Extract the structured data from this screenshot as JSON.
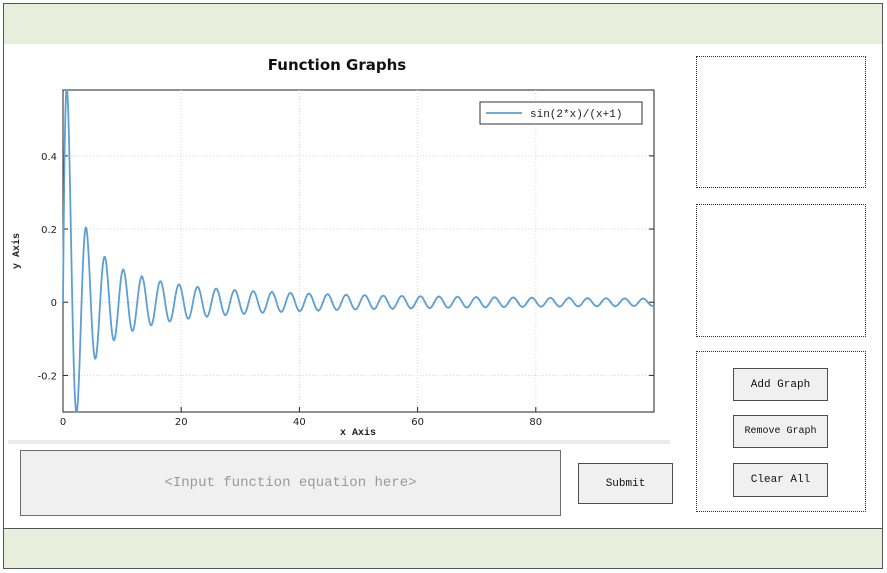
{
  "chart_data": {
    "type": "line",
    "title": "Function Graphs",
    "xlabel": "x Axis",
    "ylabel": "y Axis",
    "xlim": [
      0,
      100
    ],
    "ylim": [
      -0.3,
      0.58
    ],
    "x_ticks": [
      0,
      20,
      40,
      60,
      80
    ],
    "x_tick_labels": [
      "0",
      "20",
      "40",
      "60",
      "80"
    ],
    "y_ticks": [
      0.4,
      0.2,
      0,
      -0.2
    ],
    "y_tick_labels": [
      "0.4",
      "0.2",
      "0",
      "-0.2"
    ],
    "grid": true,
    "legend_position": "top-right",
    "series": [
      {
        "name": "sin(2*x)/(x+1)",
        "color": "#5b9fd4",
        "x": [
          0.0,
          0.785,
          2.356,
          3.927,
          5.498,
          7.069,
          8.639,
          10.21,
          11.781,
          13.352,
          14.923,
          16.493,
          18.064,
          19.635,
          21.206,
          22.777,
          24.347,
          25.918,
          27.489,
          29.06,
          30.631,
          32.201,
          33.772,
          35.343,
          36.914,
          38.485,
          40.055,
          41.626,
          43.197,
          44.768,
          46.338,
          47.909,
          49.48,
          51.051,
          52.622,
          54.192,
          55.763,
          57.334,
          58.905,
          60.476,
          62.046,
          63.617,
          65.188,
          66.759,
          68.33,
          69.9,
          71.471,
          73.042,
          74.613,
          76.184,
          77.754,
          79.325,
          80.896,
          82.467,
          84.038,
          85.608,
          87.179,
          88.75,
          90.321,
          91.892,
          93.462,
          95.033,
          96.604,
          98.175,
          99.746
        ],
        "values": [
          0.0,
          0.56,
          -0.298,
          0.203,
          -0.154,
          0.124,
          -0.104,
          0.089,
          -0.078,
          0.07,
          -0.063,
          0.057,
          -0.052,
          0.048,
          -0.045,
          0.042,
          -0.039,
          0.037,
          -0.035,
          0.033,
          -0.032,
          0.03,
          -0.029,
          0.028,
          -0.026,
          0.025,
          -0.024,
          0.023,
          -0.023,
          0.022,
          -0.021,
          0.02,
          -0.02,
          0.019,
          -0.019,
          0.018,
          -0.018,
          0.017,
          -0.017,
          0.016,
          -0.016,
          0.015,
          -0.015,
          0.015,
          -0.014,
          0.014,
          -0.014,
          0.013,
          -0.013,
          0.013,
          -0.013,
          0.012,
          -0.012,
          0.012,
          -0.012,
          0.012,
          -0.011,
          0.011,
          -0.011,
          0.011,
          -0.011,
          0.01,
          -0.01,
          0.01,
          -0.01
        ]
      }
    ]
  },
  "input": {
    "placeholder": "<Input function equation here>"
  },
  "buttons": {
    "submit": "Submit",
    "add_graph": "Add Graph",
    "remove_graph": "Remove Graph",
    "clear_all": "Clear All"
  }
}
